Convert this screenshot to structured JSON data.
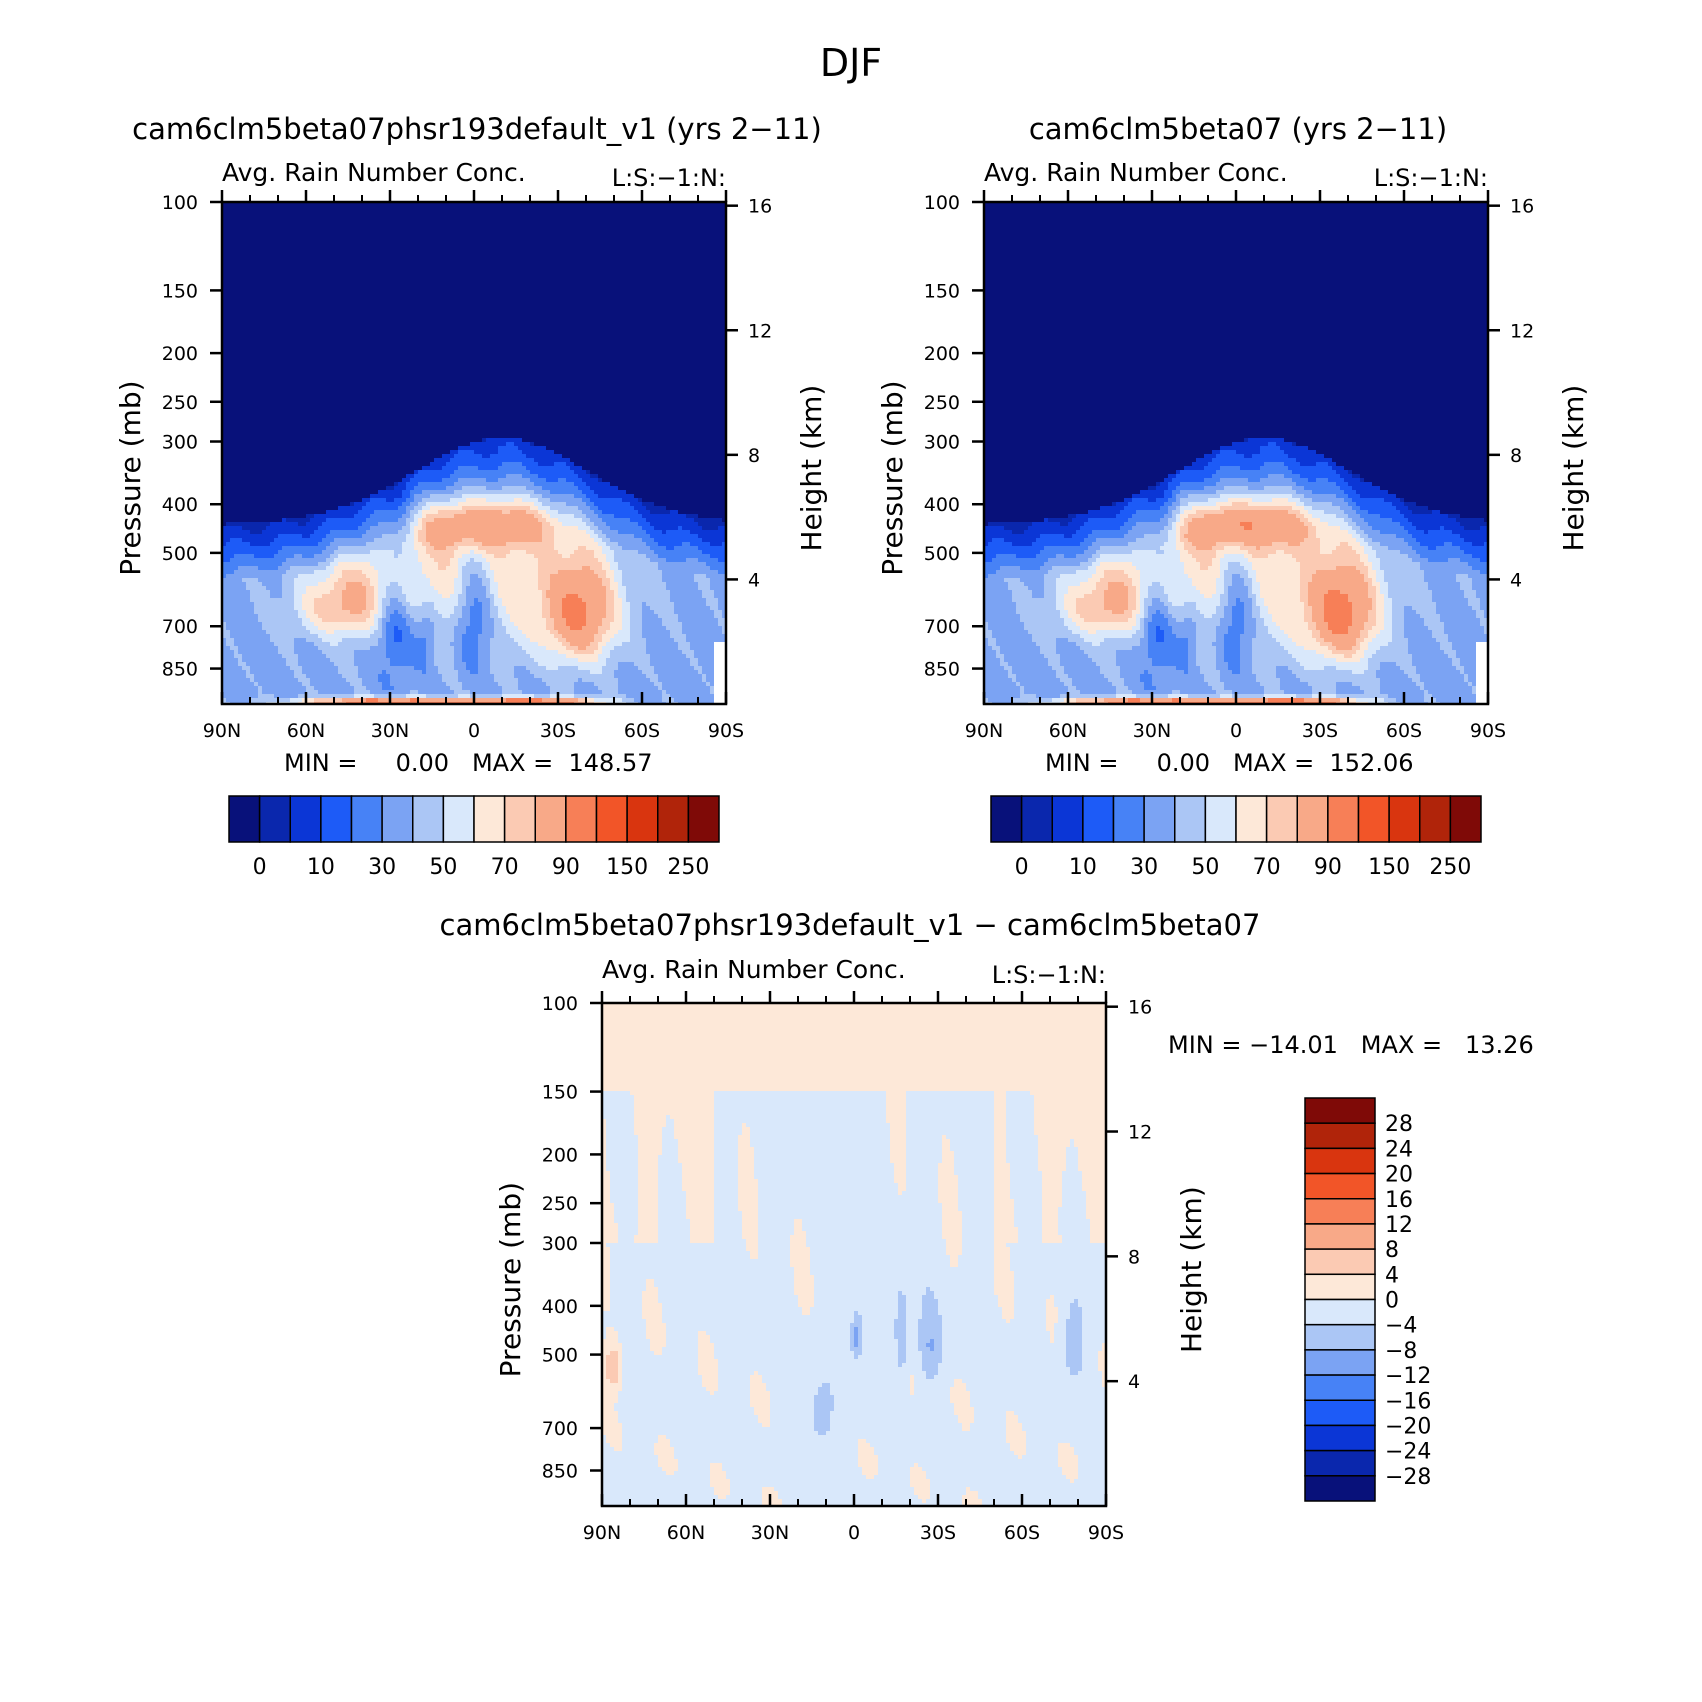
{
  "figure": {
    "title": "DJF"
  },
  "colors": {
    "abs": [
      "#08117a",
      "#0a27ad",
      "#0b36d6",
      "#1d5bf7",
      "#4782f6",
      "#7ba3f3",
      "#abc6f5",
      "#d9e8fb",
      "#fde8d8",
      "#fbcab3",
      "#f8a988",
      "#f77f57",
      "#f25528",
      "#d9350f",
      "#b0240a",
      "#7f0a07"
    ],
    "diff": [
      "#08117a",
      "#0a27ad",
      "#0b36d6",
      "#1d5bf7",
      "#4782f6",
      "#7ba3f3",
      "#abc6f5",
      "#d9e8fb",
      "#fde8d8",
      "#fbcab3",
      "#f8a988",
      "#f77f57",
      "#f25528",
      "#d9350f",
      "#b0240a",
      "#7f0a07"
    ]
  },
  "chart_data": [
    {
      "type": "heatmap",
      "title": "cam6clm5beta07phsr193default_v1 (yrs 2−11)",
      "subtitle": "Avg. Rain Number Conc.",
      "corner_label": "L:S:−1:N:",
      "xlabel": "",
      "ylabel": "Pressure (mb)",
      "ylabel_right": "Height (km)",
      "x_ticks": [
        "90N",
        "60N",
        "30N",
        "0",
        "30S",
        "60S",
        "90S"
      ],
      "x_range": [
        90,
        -90
      ],
      "y_ticks": [
        100,
        150,
        200,
        250,
        300,
        400,
        500,
        700,
        850
      ],
      "y_range": [
        100,
        1000
      ],
      "y_right_ticks": [
        "16",
        "12",
        "8",
        "4"
      ],
      "y_right_values": [
        16,
        12,
        8,
        4
      ],
      "min_max_text": "MIN =     0.00   MAX =  148.57",
      "min": 0.0,
      "max": 148.57,
      "colorbar_labels": [
        "0",
        "10",
        "30",
        "50",
        "70",
        "90",
        "150",
        "250"
      ],
      "field": "abs_v1"
    },
    {
      "type": "heatmap",
      "title": "cam6clm5beta07 (yrs 2−11)",
      "subtitle": "Avg. Rain Number Conc.",
      "corner_label": "L:S:−1:N:",
      "xlabel": "",
      "ylabel": "Pressure (mb)",
      "ylabel_right": "Height (km)",
      "x_ticks": [
        "90N",
        "60N",
        "30N",
        "0",
        "30S",
        "60S",
        "90S"
      ],
      "x_range": [
        90,
        -90
      ],
      "y_ticks": [
        100,
        150,
        200,
        250,
        300,
        400,
        500,
        700,
        850
      ],
      "y_range": [
        100,
        1000
      ],
      "y_right_ticks": [
        "16",
        "12",
        "8",
        "4"
      ],
      "y_right_values": [
        16,
        12,
        8,
        4
      ],
      "min_max_text": "MIN =     0.00   MAX =  152.06",
      "min": 0.0,
      "max": 152.06,
      "colorbar_labels": [
        "0",
        "10",
        "30",
        "50",
        "70",
        "90",
        "150",
        "250"
      ],
      "field": "abs_ctl"
    },
    {
      "type": "heatmap",
      "title": "cam6clm5beta07phsr193default_v1 − cam6clm5beta07",
      "subtitle": "Avg. Rain Number Conc.",
      "corner_label": "L:S:−1:N:",
      "xlabel": "",
      "ylabel": "Pressure (mb)",
      "ylabel_right": "Height (km)",
      "x_ticks": [
        "90N",
        "60N",
        "30N",
        "0",
        "30S",
        "60S",
        "90S"
      ],
      "x_range": [
        90,
        -90
      ],
      "y_ticks": [
        100,
        150,
        200,
        250,
        300,
        400,
        500,
        700,
        850
      ],
      "y_range": [
        100,
        1000
      ],
      "y_right_ticks": [
        "16",
        "12",
        "8",
        "4"
      ],
      "y_right_values": [
        16,
        12,
        8,
        4
      ],
      "min_max_text": "MIN = −14.01   MAX =   13.26",
      "min": -14.01,
      "max": 13.26,
      "colorbar_labels": [
        "28",
        "24",
        "20",
        "16",
        "12",
        "8",
        "4",
        "0",
        "−4",
        "−8",
        "−12",
        "−16",
        "−20",
        "−24",
        "−28"
      ],
      "field": "diff"
    }
  ]
}
